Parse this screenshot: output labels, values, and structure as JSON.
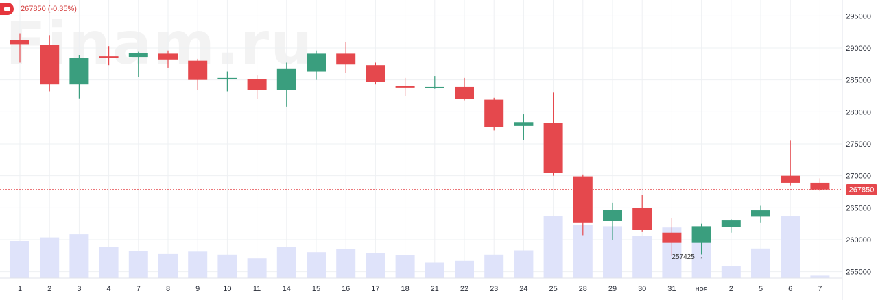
{
  "header": {
    "last_price": "267850",
    "change": "(-0.35%)",
    "icon": "finam-logo-icon"
  },
  "watermark": "Finam.ru",
  "colors": {
    "up": "#3a9e7e",
    "down": "#e5484d",
    "volume": "#dfe3fa",
    "price_line": "#e5484d",
    "grid": "#eef0f3"
  },
  "chart_data": {
    "type": "candlestick",
    "title": "",
    "xlabel": "",
    "ylabel": "",
    "ylim": [
      254000,
      297500
    ],
    "y_ticks": [
      255000,
      260000,
      265000,
      270000,
      275000,
      280000,
      285000,
      290000,
      295000
    ],
    "x_labels": [
      "1",
      "2",
      "3",
      "4",
      "7",
      "8",
      "9",
      "10",
      "11",
      "14",
      "15",
      "16",
      "17",
      "18",
      "21",
      "22",
      "23",
      "24",
      "25",
      "28",
      "29",
      "30",
      "31",
      "ноя",
      "2",
      "5",
      "6",
      "7"
    ],
    "candles": [
      {
        "o": 291200,
        "h": 292300,
        "l": 287700,
        "c": 290600
      },
      {
        "o": 290500,
        "h": 292000,
        "l": 283200,
        "c": 284300
      },
      {
        "o": 284300,
        "h": 288900,
        "l": 282100,
        "c": 288500
      },
      {
        "o": 288700,
        "h": 290300,
        "l": 287300,
        "c": 288600
      },
      {
        "o": 288600,
        "h": 289400,
        "l": 285500,
        "c": 289200
      },
      {
        "o": 289100,
        "h": 289600,
        "l": 286900,
        "c": 288200
      },
      {
        "o": 288000,
        "h": 288300,
        "l": 283400,
        "c": 285000
      },
      {
        "o": 285100,
        "h": 286300,
        "l": 283200,
        "c": 285300
      },
      {
        "o": 285100,
        "h": 285700,
        "l": 282000,
        "c": 283400
      },
      {
        "o": 283400,
        "h": 287700,
        "l": 280800,
        "c": 286700
      },
      {
        "o": 286300,
        "h": 289600,
        "l": 285000,
        "c": 289100
      },
      {
        "o": 289100,
        "h": 290900,
        "l": 286100,
        "c": 287400
      },
      {
        "o": 287300,
        "h": 287700,
        "l": 284300,
        "c": 284700
      },
      {
        "o": 284100,
        "h": 285300,
        "l": 282500,
        "c": 283800
      },
      {
        "o": 283800,
        "h": 285600,
        "l": 283600,
        "c": 283900
      },
      {
        "o": 283900,
        "h": 285300,
        "l": 281800,
        "c": 282000
      },
      {
        "o": 281900,
        "h": 282200,
        "l": 277100,
        "c": 277600
      },
      {
        "o": 277800,
        "h": 279600,
        "l": 275600,
        "c": 278400
      },
      {
        "o": 278300,
        "h": 283000,
        "l": 270000,
        "c": 270400
      },
      {
        "o": 269900,
        "h": 270200,
        "l": 260700,
        "c": 262700
      },
      {
        "o": 262900,
        "h": 265800,
        "l": 259900,
        "c": 264700
      },
      {
        "o": 265000,
        "h": 267000,
        "l": 261300,
        "c": 261500
      },
      {
        "o": 261100,
        "h": 263400,
        "l": 257425,
        "c": 259500
      },
      {
        "o": 259500,
        "h": 262500,
        "l": 257700,
        "c": 262100
      },
      {
        "o": 262000,
        "h": 263200,
        "l": 261100,
        "c": 263100
      },
      {
        "o": 263600,
        "h": 265300,
        "l": 262700,
        "c": 264600
      },
      {
        "o": 270000,
        "h": 275500,
        "l": 268500,
        "c": 268900
      },
      {
        "o": 268900,
        "h": 269600,
        "l": 267600,
        "c": 267850
      }
    ],
    "volume_relative": [
      0.6,
      0.66,
      0.71,
      0.5,
      0.44,
      0.39,
      0.43,
      0.38,
      0.32,
      0.5,
      0.42,
      0.47,
      0.4,
      0.37,
      0.25,
      0.28,
      0.38,
      0.45,
      1.0,
      0.86,
      0.84,
      0.68,
      0.82,
      0.84,
      0.19,
      0.48,
      1.0,
      0.04
    ],
    "last_price": 267850,
    "last_price_label": "267850",
    "annotation": {
      "text": "257425 →",
      "candle_index": 22
    }
  }
}
